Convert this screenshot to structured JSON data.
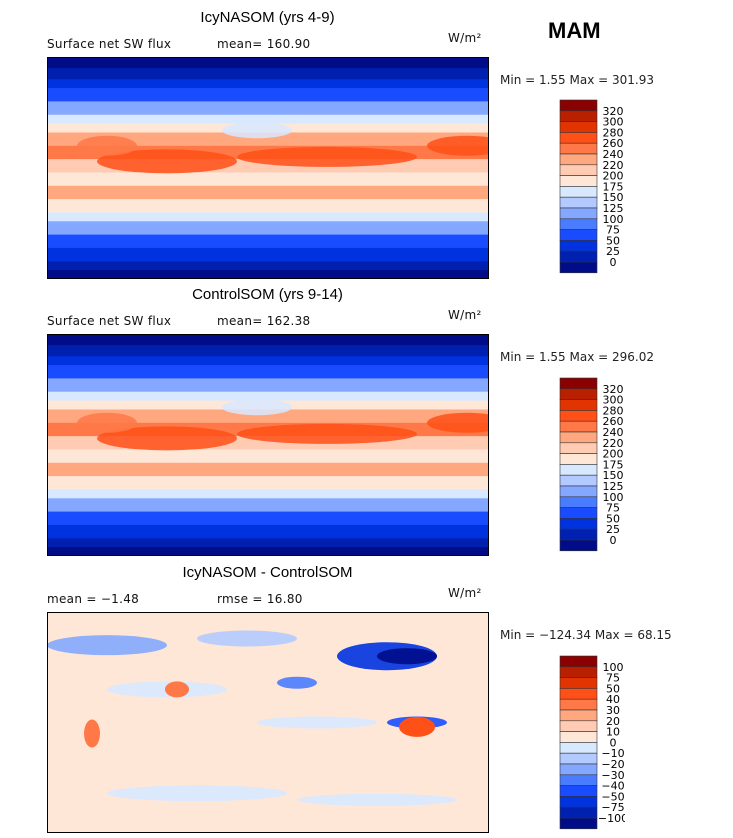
{
  "season": "MAM",
  "units": "W/m²",
  "panels": [
    {
      "title": "IcyNASOM (yrs 4-9)",
      "variable": "Surface net SW flux",
      "stat1": "mean= 160.90",
      "stat2": "",
      "minmax": "Min =    1.55 Max = 301.93",
      "type": "absolute"
    },
    {
      "title": "ControlSOM (yrs 9-14)",
      "variable": "Surface net SW flux",
      "stat1": "mean= 162.38",
      "stat2": "",
      "minmax": "Min =    1.55 Max = 296.02",
      "type": "absolute"
    },
    {
      "title": "IcyNASOM - ControlSOM",
      "variable": "",
      "stat1": "mean =  −1.48",
      "stat2": "rmse =  16.80",
      "minmax": "Min = −124.34 Max =  68.15",
      "type": "difference"
    }
  ],
  "colorbar_colors": [
    "#8b0000",
    "#b82000",
    "#e23400",
    "#ff5018",
    "#ff7848",
    "#ffa880",
    "#ffcbb2",
    "#ffe7d8",
    "#d8e8ff",
    "#b2caff",
    "#84a8ff",
    "#4a7cff",
    "#1a4cff",
    "#0032e0",
    "#0020b0",
    "#000c88"
  ],
  "colorbars": [
    [
      "320",
      "300",
      "280",
      "260",
      "240",
      "220",
      "200",
      "175",
      "150",
      "125",
      "100",
      "75",
      "50",
      "25",
      "0"
    ],
    [
      "320",
      "300",
      "280",
      "260",
      "240",
      "220",
      "200",
      "175",
      "150",
      "125",
      "100",
      "75",
      "50",
      "25",
      "0"
    ],
    [
      "100",
      "75",
      "50",
      "40",
      "30",
      "20",
      "10",
      "0",
      "−10",
      "−20",
      "−30",
      "−40",
      "−50",
      "−75",
      "−100"
    ]
  ]
}
